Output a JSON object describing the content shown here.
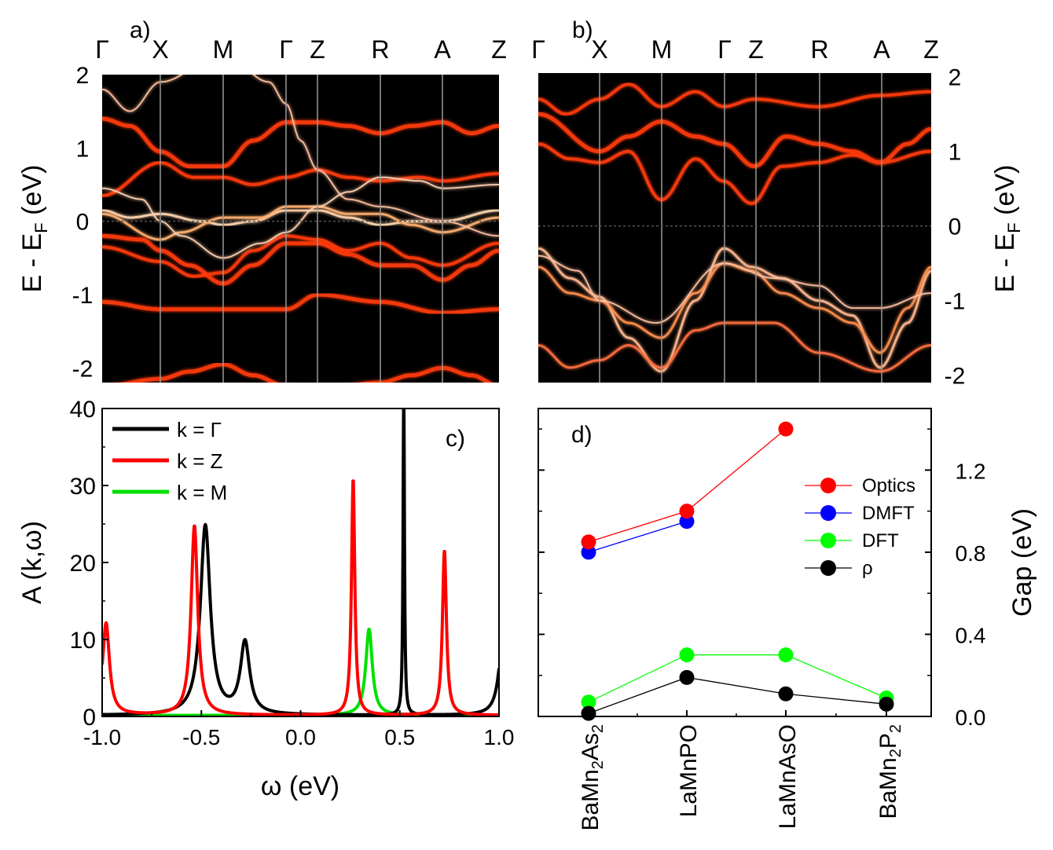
{
  "panels": {
    "a": {
      "label": "a)",
      "ylabel": "E - E",
      "ylabel_sub": "F",
      "ylabel_suffix": " (eV)",
      "kpoints": [
        "Γ",
        "X",
        "M",
        "Γ",
        "Z",
        "R",
        "A",
        "Z"
      ],
      "yticks": [
        "2",
        "1",
        "0",
        "-1",
        "-2"
      ],
      "ylim": [
        -2.2,
        2.0
      ]
    },
    "b": {
      "label": "b)",
      "ylabel": "E - E",
      "ylabel_sub": "F",
      "ylabel_suffix": " (eV)",
      "kpoints": [
        "Γ",
        "X",
        "M",
        "Γ",
        "Z",
        "R",
        "A",
        "Z"
      ],
      "yticks": [
        "2",
        "1",
        "0",
        "-1",
        "-2"
      ],
      "ylim": [
        -2.1,
        2.05
      ]
    }
  },
  "colors": {
    "gamma": "#000000",
    "z": "#ff0000",
    "m": "#00e000",
    "optics": "#ff0000",
    "dmft": "#0000ff",
    "dft": "#00ff00",
    "rho": "#000000",
    "band_bg": "#000000",
    "band_line": "#ff3a10"
  },
  "chart_data": [
    {
      "id": "c",
      "type": "line",
      "label": "c)",
      "xlabel": "ω (eV)",
      "ylabel": "A (k,ω)",
      "xlim": [
        -1.0,
        1.0
      ],
      "ylim": [
        0,
        40
      ],
      "xticks": [
        "-1.0",
        "-0.5",
        "0.0",
        "0.5",
        "1.0"
      ],
      "yticks": [
        "0",
        "10",
        "20",
        "30",
        "40"
      ],
      "legend": [
        "k = Γ",
        "k = Z",
        "k = M"
      ],
      "series": [
        {
          "name": "k = Γ",
          "peaks": [
            {
              "center": -0.48,
              "height": 24.6,
              "width": 0.03
            },
            {
              "center": -0.28,
              "height": 9.3,
              "width": 0.028
            },
            {
              "center": 0.52,
              "height": 44.0,
              "width": 0.004
            },
            {
              "center": 1.02,
              "height": 10.0,
              "width": 0.025
            }
          ]
        },
        {
          "name": "k = Z",
          "peaks": [
            {
              "center": -0.98,
              "height": 11.5,
              "width": 0.02
            },
            {
              "center": -0.535,
              "height": 24.6,
              "width": 0.02
            },
            {
              "center": 0.265,
              "height": 30.7,
              "width": 0.01
            },
            {
              "center": 0.725,
              "height": 21.4,
              "width": 0.012
            },
            {
              "center": -1.06,
              "height": 8.0,
              "width": 0.02
            }
          ]
        },
        {
          "name": "k = M",
          "peaks": [
            {
              "center": 0.345,
              "height": 11.2,
              "width": 0.02
            }
          ]
        }
      ]
    },
    {
      "id": "d",
      "type": "scatter",
      "label": "d)",
      "ylabel": "Gap (eV)",
      "ylim": [
        0,
        1.5
      ],
      "yticks": [
        "0.0",
        "0.4",
        "0.8",
        "1.2"
      ],
      "categories": [
        "BaMn2As2",
        "LaMnPO",
        "LaMnAsO",
        "BaMn2P2"
      ],
      "category_labels": [
        {
          "main": "BaMn",
          "sub1": "2",
          "mid": "As",
          "sub2": "2"
        },
        {
          "main": "LaMnPO",
          "sub1": "",
          "mid": "",
          "sub2": ""
        },
        {
          "main": "LaMnAsO",
          "sub1": "",
          "mid": "",
          "sub2": ""
        },
        {
          "main": "BaMn",
          "sub1": "2",
          "mid": "P",
          "sub2": "2"
        }
      ],
      "legend": [
        "Optics",
        "DMFT",
        "DFT",
        "ρ"
      ],
      "series": [
        {
          "name": "Optics",
          "values": [
            0.85,
            1.0,
            1.4,
            null
          ]
        },
        {
          "name": "DMFT",
          "values": [
            0.8,
            0.95,
            null,
            null
          ]
        },
        {
          "name": "DFT",
          "values": [
            0.07,
            0.3,
            0.3,
            0.09
          ]
        },
        {
          "name": "ρ",
          "values": [
            0.015,
            0.19,
            0.11,
            0.06
          ]
        }
      ]
    }
  ]
}
